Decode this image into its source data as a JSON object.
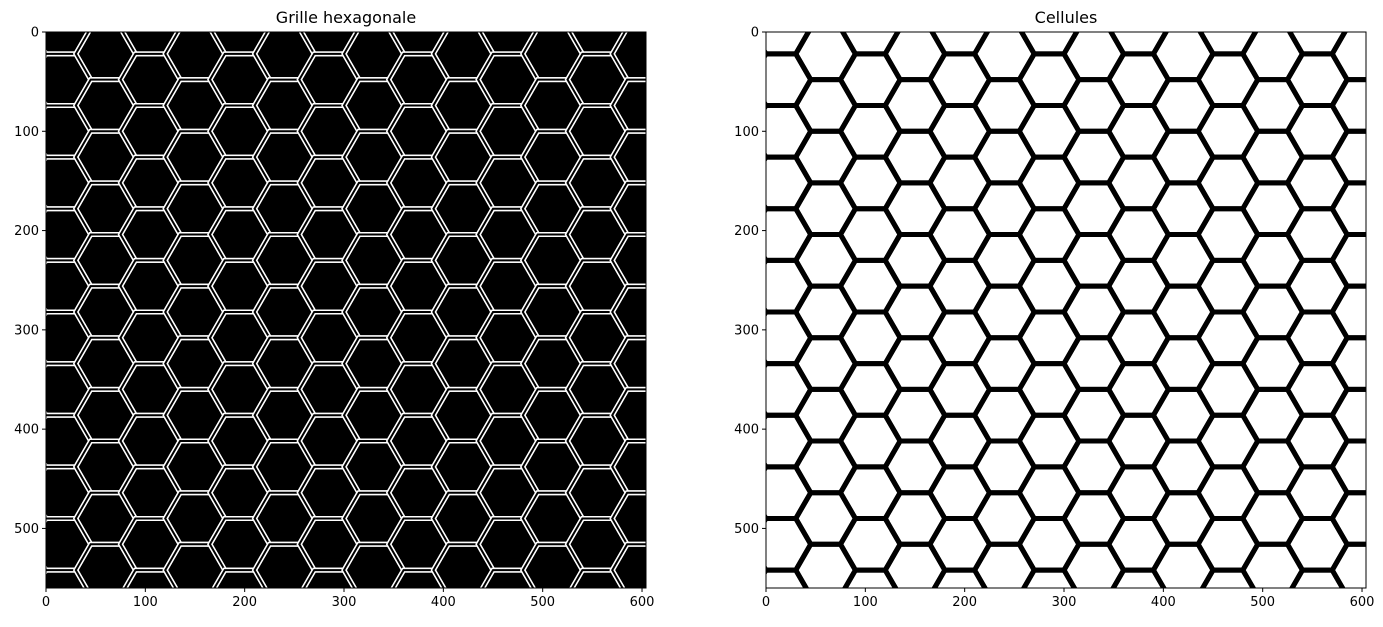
{
  "chart_data": [
    {
      "type": "heatmap",
      "title": "Grille hexagonale",
      "colormap": "gray",
      "background": "#000000",
      "edge_color": "#ffffff",
      "image_size": [
        604,
        560
      ],
      "hex_grid": {
        "orientation": "flat-top",
        "radius": 30,
        "row_step": 52,
        "col_step": 45,
        "edge_style": "double-line"
      },
      "xlim": [
        0,
        604
      ],
      "ylim": [
        560,
        0
      ],
      "xticks": [
        0,
        100,
        200,
        300,
        400,
        500,
        600
      ],
      "yticks": [
        0,
        100,
        200,
        300,
        400,
        500
      ],
      "xtick_labels": [
        "0",
        "100",
        "200",
        "300",
        "400",
        "500",
        "600"
      ],
      "ytick_labels": [
        "0",
        "100",
        "200",
        "300",
        "400",
        "500"
      ],
      "xlabel": "",
      "ylabel": ""
    },
    {
      "type": "heatmap",
      "title": "Cellules",
      "colormap": "gray",
      "background": "#ffffff",
      "edge_color": "#000000",
      "image_size": [
        604,
        560
      ],
      "hex_grid": {
        "orientation": "flat-top",
        "radius": 30,
        "row_step": 52,
        "col_step": 45,
        "edge_style": "thick-line"
      },
      "xlim": [
        0,
        604
      ],
      "ylim": [
        560,
        0
      ],
      "xticks": [
        0,
        100,
        200,
        300,
        400,
        500,
        600
      ],
      "yticks": [
        0,
        100,
        200,
        300,
        400,
        500
      ],
      "xtick_labels": [
        "0",
        "100",
        "200",
        "300",
        "400",
        "500",
        "600"
      ],
      "ytick_labels": [
        "0",
        "100",
        "200",
        "300",
        "400",
        "500"
      ],
      "xlabel": "",
      "ylabel": ""
    }
  ]
}
